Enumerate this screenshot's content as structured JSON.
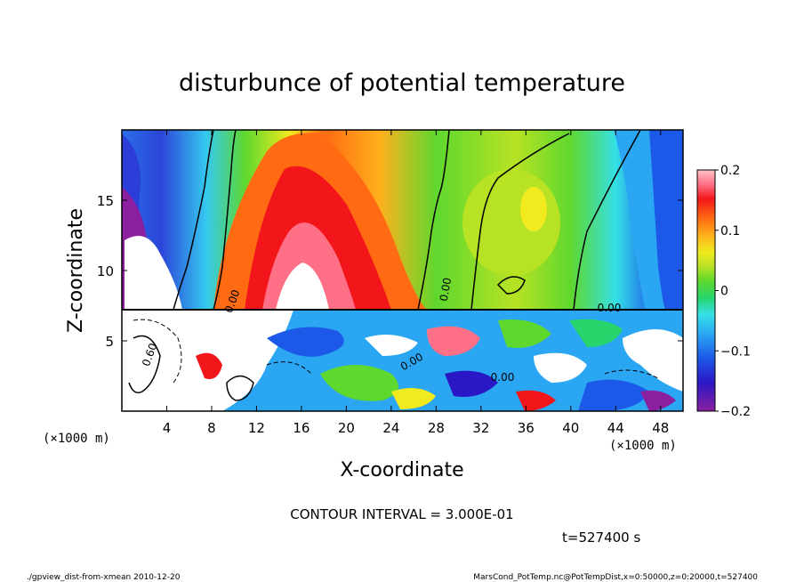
{
  "chart_data": {
    "type": "heatmap",
    "title": "disturbunce of potential temperature",
    "xlabel": "X-coordinate",
    "ylabel": "Z-coordinate",
    "x_unit_note": "(×1000 m)",
    "y_unit_note": "(×1000 m)",
    "xlim": [
      0,
      50
    ],
    "ylim": [
      0,
      20
    ],
    "x_ticks": [
      "4",
      "8",
      "12",
      "16",
      "20",
      "24",
      "28",
      "32",
      "36",
      "40",
      "44",
      "48"
    ],
    "y_ticks": [
      "5",
      "10",
      "15"
    ],
    "colorbar": {
      "range": [
        -0.2,
        0.2
      ],
      "tick_labels": [
        "0.2",
        "0.1",
        "0",
        "−0.1",
        "−0.2"
      ],
      "colors": [
        "#8a1fa0",
        "#2a17c6",
        "#1c59e8",
        "#2aa6f2",
        "#35e0e6",
        "#28d56c",
        "#5fd82e",
        "#b8e224",
        "#f0ea1e",
        "#ffb01c",
        "#ff6a12",
        "#f2161a",
        "#ff6f86",
        "#ffc2c8"
      ]
    },
    "contour_labels": [
      "0.00",
      "0.00",
      "0.00",
      "0.00",
      "0.00",
      "0.60"
    ],
    "contour_interval_text": "CONTOUR INTERVAL = 3.000E-01",
    "time_text": "t=527400 s",
    "grid": false
  },
  "footer": {
    "left": "./gpview_dist-from-xmean  2010-12-20",
    "right": "MarsCond_PotTemp.nc@PotTempDist,x=0:50000,z=0:20000,t=527400"
  }
}
